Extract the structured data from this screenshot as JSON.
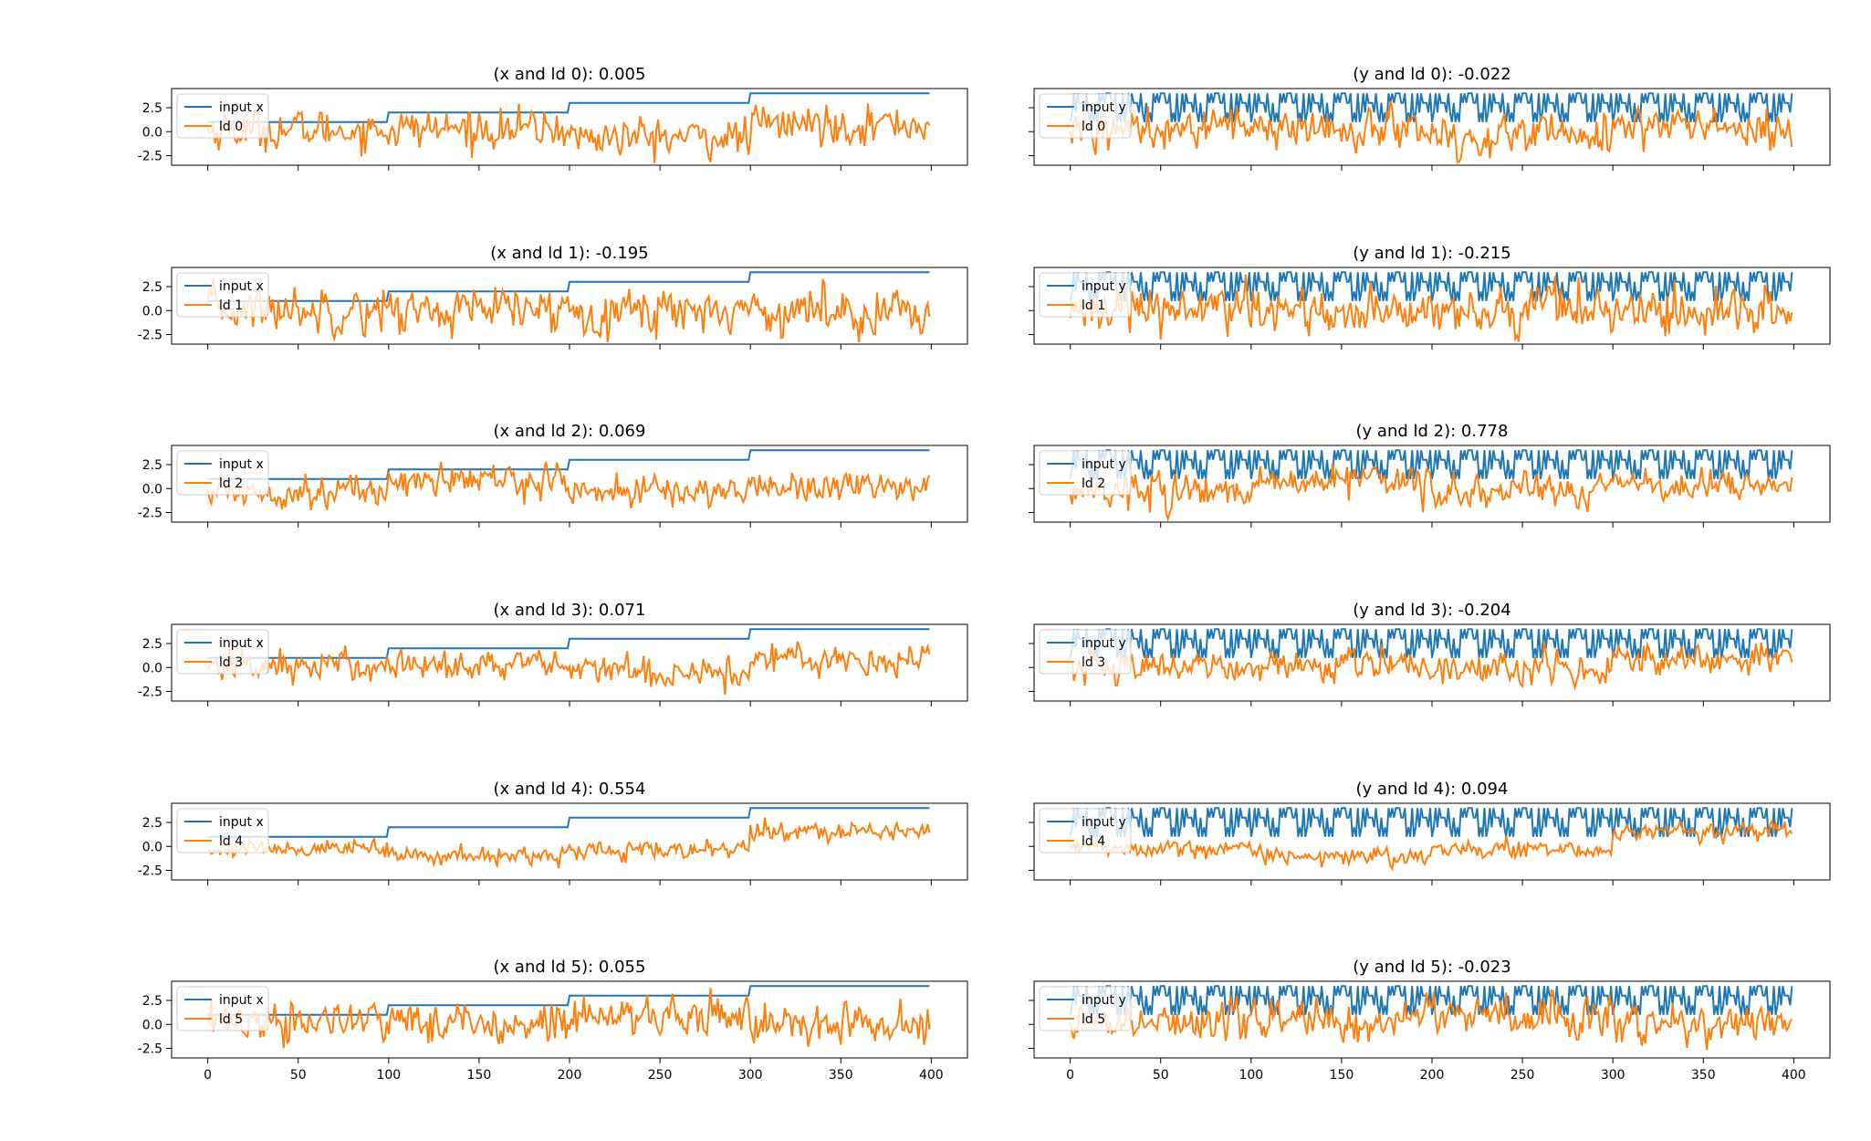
{
  "figure": {
    "title": "",
    "subplots_note": ""
  },
  "chart_data": [
    {
      "type": "line",
      "title": "(x and ld 0): 0.005",
      "input_series": "input x",
      "ld_series": "ld 0",
      "input_kind": "x",
      "ld_index": 0,
      "xlim": [
        -20,
        420
      ],
      "ylim": [
        -3.5,
        4.5
      ],
      "xticks": [
        0,
        50,
        100,
        150,
        200,
        250,
        300,
        350,
        400
      ],
      "yticks": [
        -2.5,
        0.0,
        2.5
      ],
      "show_x_tick_labels": false,
      "show_y_tick_labels": true,
      "legend": "upper left",
      "colors": {
        "input": "#1f77b4",
        "ld": "#ff7f0e"
      }
    },
    {
      "type": "line",
      "title": "(y and ld 0): -0.022",
      "input_series": "input y",
      "ld_series": "ld 0",
      "input_kind": "y",
      "ld_index": 0,
      "xlim": [
        -20,
        420
      ],
      "ylim": [
        -3.5,
        4.5
      ],
      "xticks": [
        0,
        50,
        100,
        150,
        200,
        250,
        300,
        350,
        400
      ],
      "yticks": [
        -2.5,
        0.0,
        2.5
      ],
      "show_x_tick_labels": false,
      "show_y_tick_labels": false,
      "legend": "upper left",
      "colors": {
        "input": "#1f77b4",
        "ld": "#ff7f0e"
      }
    },
    {
      "type": "line",
      "title": "(x and ld 1): -0.195",
      "input_series": "input x",
      "ld_series": "ld 1",
      "input_kind": "x",
      "ld_index": 1,
      "xlim": [
        -20,
        420
      ],
      "ylim": [
        -3.5,
        4.5
      ],
      "xticks": [
        0,
        50,
        100,
        150,
        200,
        250,
        300,
        350,
        400
      ],
      "yticks": [
        -2.5,
        0.0,
        2.5
      ],
      "show_x_tick_labels": false,
      "show_y_tick_labels": true,
      "legend": "upper left",
      "colors": {
        "input": "#1f77b4",
        "ld": "#ff7f0e"
      }
    },
    {
      "type": "line",
      "title": "(y and ld 1): -0.215",
      "input_series": "input y",
      "ld_series": "ld 1",
      "input_kind": "y",
      "ld_index": 1,
      "xlim": [
        -20,
        420
      ],
      "ylim": [
        -3.5,
        4.5
      ],
      "xticks": [
        0,
        50,
        100,
        150,
        200,
        250,
        300,
        350,
        400
      ],
      "yticks": [
        -2.5,
        0.0,
        2.5
      ],
      "show_x_tick_labels": false,
      "show_y_tick_labels": false,
      "legend": "upper left",
      "colors": {
        "input": "#1f77b4",
        "ld": "#ff7f0e"
      }
    },
    {
      "type": "line",
      "title": "(x and ld 2): 0.069",
      "input_series": "input x",
      "ld_series": "ld 2",
      "input_kind": "x",
      "ld_index": 2,
      "xlim": [
        -20,
        420
      ],
      "ylim": [
        -3.5,
        4.5
      ],
      "xticks": [
        0,
        50,
        100,
        150,
        200,
        250,
        300,
        350,
        400
      ],
      "yticks": [
        -2.5,
        0.0,
        2.5
      ],
      "show_x_tick_labels": false,
      "show_y_tick_labels": true,
      "legend": "upper left",
      "colors": {
        "input": "#1f77b4",
        "ld": "#ff7f0e"
      }
    },
    {
      "type": "line",
      "title": "(y and ld 2): 0.778",
      "input_series": "input y",
      "ld_series": "ld 2",
      "input_kind": "y",
      "ld_index": 2,
      "xlim": [
        -20,
        420
      ],
      "ylim": [
        -3.5,
        4.5
      ],
      "xticks": [
        0,
        50,
        100,
        150,
        200,
        250,
        300,
        350,
        400
      ],
      "yticks": [
        -2.5,
        0.0,
        2.5
      ],
      "show_x_tick_labels": false,
      "show_y_tick_labels": false,
      "legend": "upper left",
      "colors": {
        "input": "#1f77b4",
        "ld": "#ff7f0e"
      }
    },
    {
      "type": "line",
      "title": "(x and ld 3): 0.071",
      "input_series": "input x",
      "ld_series": "ld 3",
      "input_kind": "x",
      "ld_index": 3,
      "xlim": [
        -20,
        420
      ],
      "ylim": [
        -3.5,
        4.5
      ],
      "xticks": [
        0,
        50,
        100,
        150,
        200,
        250,
        300,
        350,
        400
      ],
      "yticks": [
        -2.5,
        0.0,
        2.5
      ],
      "show_x_tick_labels": false,
      "show_y_tick_labels": true,
      "legend": "upper left",
      "colors": {
        "input": "#1f77b4",
        "ld": "#ff7f0e"
      }
    },
    {
      "type": "line",
      "title": "(y and ld 3): -0.204",
      "input_series": "input y",
      "ld_series": "ld 3",
      "input_kind": "y",
      "ld_index": 3,
      "xlim": [
        -20,
        420
      ],
      "ylim": [
        -3.5,
        4.5
      ],
      "xticks": [
        0,
        50,
        100,
        150,
        200,
        250,
        300,
        350,
        400
      ],
      "yticks": [
        -2.5,
        0.0,
        2.5
      ],
      "show_x_tick_labels": false,
      "show_y_tick_labels": false,
      "legend": "upper left",
      "colors": {
        "input": "#1f77b4",
        "ld": "#ff7f0e"
      }
    },
    {
      "type": "line",
      "title": "(x and ld 4): 0.554",
      "input_series": "input x",
      "ld_series": "ld 4",
      "input_kind": "x",
      "ld_index": 4,
      "xlim": [
        -20,
        420
      ],
      "ylim": [
        -3.5,
        4.5
      ],
      "xticks": [
        0,
        50,
        100,
        150,
        200,
        250,
        300,
        350,
        400
      ],
      "yticks": [
        -2.5,
        0.0,
        2.5
      ],
      "show_x_tick_labels": false,
      "show_y_tick_labels": true,
      "legend": "upper left",
      "colors": {
        "input": "#1f77b4",
        "ld": "#ff7f0e"
      }
    },
    {
      "type": "line",
      "title": "(y and ld 4): 0.094",
      "input_series": "input y",
      "ld_series": "ld 4",
      "input_kind": "y",
      "ld_index": 4,
      "xlim": [
        -20,
        420
      ],
      "ylim": [
        -3.5,
        4.5
      ],
      "xticks": [
        0,
        50,
        100,
        150,
        200,
        250,
        300,
        350,
        400
      ],
      "yticks": [
        -2.5,
        0.0,
        2.5
      ],
      "show_x_tick_labels": false,
      "show_y_tick_labels": false,
      "legend": "upper left",
      "colors": {
        "input": "#1f77b4",
        "ld": "#ff7f0e"
      }
    },
    {
      "type": "line",
      "title": "(x and ld 5): 0.055",
      "input_series": "input x",
      "ld_series": "ld 5",
      "input_kind": "x",
      "ld_index": 5,
      "xlim": [
        -20,
        420
      ],
      "ylim": [
        -3.5,
        4.5
      ],
      "xticks": [
        0,
        50,
        100,
        150,
        200,
        250,
        300,
        350,
        400
      ],
      "yticks": [
        -2.5,
        0.0,
        2.5
      ],
      "show_x_tick_labels": true,
      "show_y_tick_labels": true,
      "legend": "upper left",
      "colors": {
        "input": "#1f77b4",
        "ld": "#ff7f0e"
      }
    },
    {
      "type": "line",
      "title": "(y and ld 5): -0.023",
      "input_series": "input y",
      "ld_series": "ld 5",
      "input_kind": "y",
      "ld_index": 5,
      "xlim": [
        -20,
        420
      ],
      "ylim": [
        -3.5,
        4.5
      ],
      "xticks": [
        0,
        50,
        100,
        150,
        200,
        250,
        300,
        350,
        400
      ],
      "yticks": [
        -2.5,
        0.0,
        2.5
      ],
      "show_x_tick_labels": true,
      "show_y_tick_labels": false,
      "legend": "upper left",
      "colors": {
        "input": "#1f77b4",
        "ld": "#ff7f0e"
      }
    }
  ]
}
